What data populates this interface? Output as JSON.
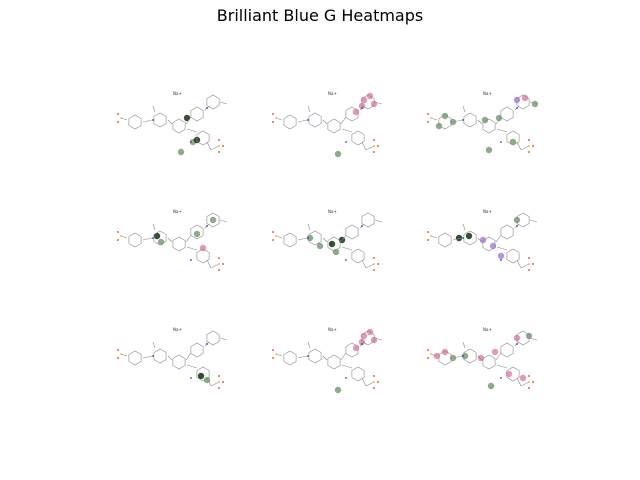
{
  "figure": {
    "title": "Brilliant Blue G Heatmaps",
    "panel_count": 9,
    "layout": "3x3 grid"
  },
  "panels": [
    {
      "id": "r1c1",
      "label": "Na+",
      "highlight": "sparse-dark"
    },
    {
      "id": "r1c2",
      "label": "Na+",
      "highlight": "top-ring-pink"
    },
    {
      "id": "r1c3",
      "label": "Na+",
      "highlight": "broad-mixed"
    },
    {
      "id": "r2c1",
      "label": "Na+",
      "highlight": "center-dark"
    },
    {
      "id": "r2c2",
      "label": "Na+",
      "highlight": "center-green"
    },
    {
      "id": "r2c3",
      "label": "Na+",
      "highlight": "center-purple"
    },
    {
      "id": "r3c1",
      "label": "Na+",
      "highlight": "minimal"
    },
    {
      "id": "r3c2",
      "label": "Na+",
      "highlight": "top-ring-pink"
    },
    {
      "id": "r3c3",
      "label": "Na+",
      "highlight": "broad-pink"
    }
  ],
  "colors": {
    "bond": "#8a8a8a",
    "nitrogen": "#3a3ad0",
    "oxygen": "#e03030",
    "sulfur": "#d8c020",
    "pink": "#d04080",
    "green": "#2a6a2a",
    "dark": "#103010",
    "purple": "#8040c0"
  }
}
